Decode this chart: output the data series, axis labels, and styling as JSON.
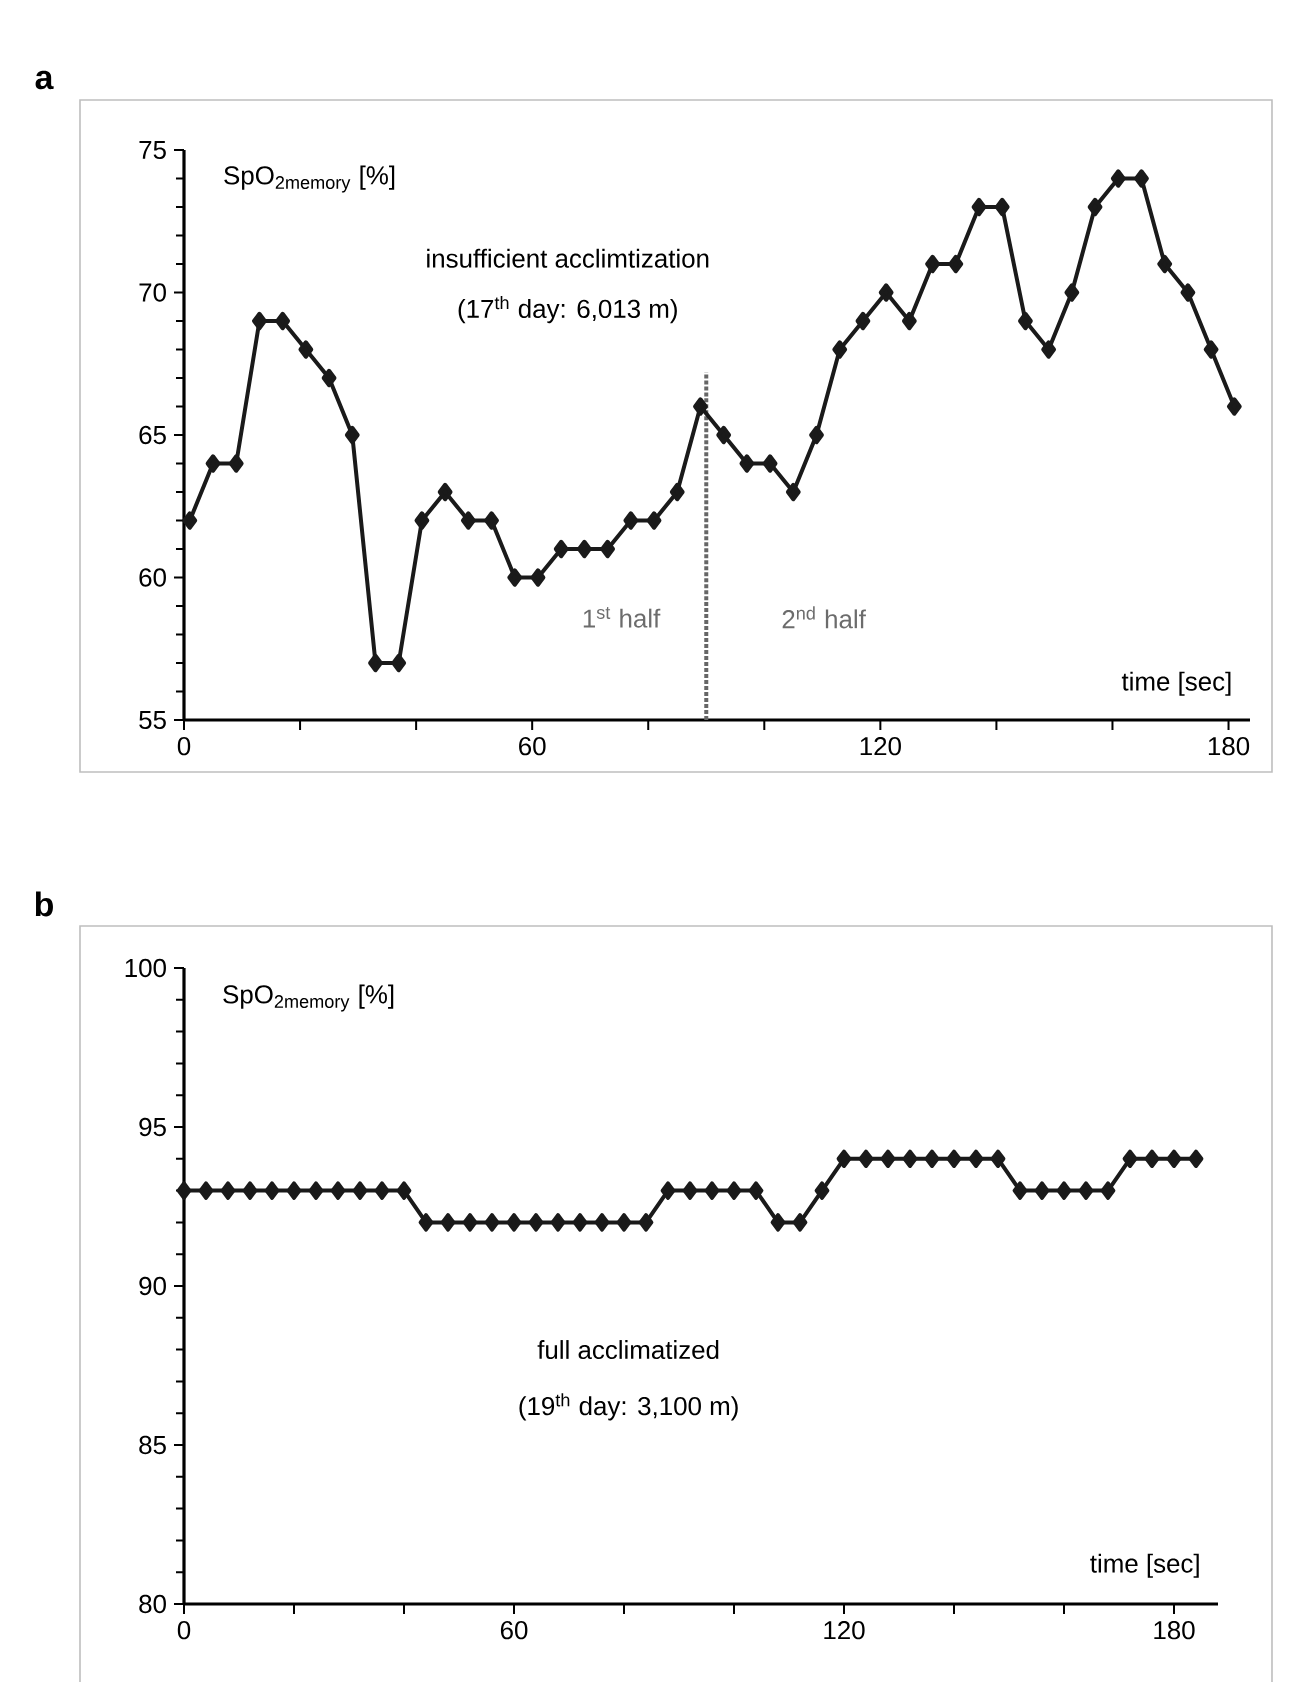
{
  "chart_data": [
    {
      "type": "line",
      "title": "a",
      "xlabel": "time [sec]",
      "ylabel": "SpO$_{2memory}$ [%]",
      "x": [
        1,
        5,
        9,
        13,
        17,
        21,
        25,
        29,
        33,
        37,
        41,
        45,
        49,
        53,
        57,
        61,
        65,
        69,
        73,
        77,
        81,
        85,
        89,
        93,
        97,
        101,
        105,
        109,
        113,
        117,
        121,
        125,
        129,
        133,
        137,
        141,
        145,
        149,
        153,
        157,
        161,
        165,
        169,
        173,
        177,
        181
      ],
      "values": [
        62,
        64,
        64,
        69,
        69,
        68,
        67,
        65,
        57,
        57,
        62,
        63,
        62,
        62,
        60,
        60,
        61,
        61,
        61,
        62,
        62,
        63,
        66,
        65,
        64,
        64,
        63,
        65,
        68,
        69,
        70,
        69,
        71,
        71,
        73,
        73,
        69,
        68,
        70,
        73,
        74,
        74,
        71,
        70,
        68,
        66
      ],
      "color": "#1a1a1a",
      "marker": "diamond",
      "xlim": [
        0,
        183.7
      ],
      "ylim": [
        55,
        75
      ],
      "xticks": [
        0,
        {
          "value": 20,
          "label": null
        },
        {
          "value": 40,
          "label": null
        },
        60,
        {
          "value": 80,
          "label": null
        },
        {
          "value": 100,
          "label": null
        },
        120,
        {
          "value": 140,
          "label": null
        },
        {
          "value": 160,
          "label": null
        },
        180
      ],
      "yticks": [
        55,
        60,
        65,
        70,
        75
      ],
      "ref_lines": [
        {
          "axis": "x",
          "value": 90,
          "color": "#666666",
          "line_style": "dotted"
        }
      ],
      "annotations": [
        "insufficient acclimtization",
        "(17$^{th}$ day: 6,013 m)",
        "1$^{st}$ half",
        "2$^{nd}$ half"
      ]
    },
    {
      "type": "line",
      "title": "b",
      "xlabel": "time [sec]",
      "ylabel": "SpO$_{2memory}$ [%]",
      "x": [
        0,
        4,
        8,
        12,
        16,
        20,
        24,
        28,
        32,
        36,
        40,
        44,
        48,
        52,
        56,
        60,
        64,
        68,
        72,
        76,
        80,
        84,
        88,
        92,
        96,
        100,
        104,
        108,
        112,
        116,
        120,
        124,
        128,
        132,
        136,
        140,
        144,
        148,
        152,
        156,
        160,
        164,
        168,
        172,
        176,
        180,
        184
      ],
      "values": [
        93,
        93,
        93,
        93,
        93,
        93,
        93,
        93,
        93,
        93,
        93,
        92,
        92,
        92,
        92,
        92,
        92,
        92,
        92,
        92,
        92,
        92,
        93,
        93,
        93,
        93,
        93,
        92,
        92,
        93,
        94,
        94,
        94,
        94,
        94,
        94,
        94,
        94,
        93,
        93,
        93,
        93,
        93,
        94,
        94,
        94,
        94
      ],
      "color": "#1a1a1a",
      "marker": "diamond",
      "xlim": [
        0,
        188
      ],
      "ylim": [
        80,
        100
      ],
      "xticks": [
        0,
        {
          "value": 20,
          "label": null
        },
        {
          "value": 40,
          "label": null
        },
        60,
        {
          "value": 80,
          "label": null
        },
        {
          "value": 100,
          "label": null
        },
        120,
        {
          "value": 140,
          "label": null
        },
        {
          "value": 160,
          "label": null
        },
        180
      ],
      "yticks": [
        80,
        85,
        90,
        95,
        100
      ],
      "annotations": [
        "full acclimatized",
        "(19$^{th}$ day: 3,100 m)"
      ]
    }
  ]
}
